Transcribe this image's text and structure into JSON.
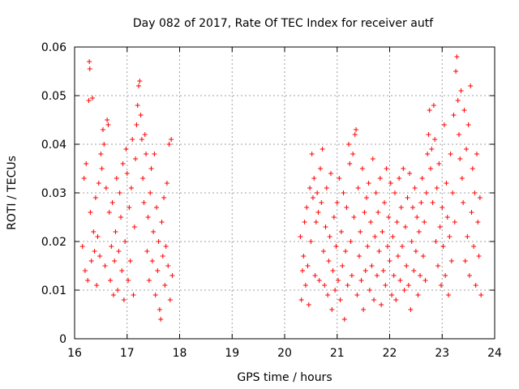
{
  "chart_data": {
    "type": "scatter",
    "title": "Day 082 of 2017, Rate Of TEC Index for receiver autf",
    "xlabel": "GPS time / hours",
    "ylabel": "ROTI / TECUs",
    "xlim": [
      16,
      24
    ],
    "ylim": [
      0,
      0.06
    ],
    "x_ticks": [
      16,
      17,
      18,
      19,
      20,
      21,
      22,
      23,
      24
    ],
    "y_ticks": [
      0,
      0.01,
      0.02,
      0.03,
      0.04,
      0.05,
      0.06
    ],
    "x_tick_labels": [
      "16",
      "17",
      "18",
      "19",
      "20",
      "21",
      "22",
      "23",
      "24"
    ],
    "y_tick_labels": [
      "0",
      "0.01",
      "0.02",
      "0.03",
      "0.04",
      "0.05",
      "0.06"
    ],
    "grid": true,
    "marker": "+",
    "color": "#ff0000",
    "series": [
      {
        "name": "ROTI",
        "points": [
          [
            16.15,
            0.019
          ],
          [
            16.18,
            0.033
          ],
          [
            16.2,
            0.014
          ],
          [
            16.22,
            0.036
          ],
          [
            16.25,
            0.012
          ],
          [
            16.27,
            0.049
          ],
          [
            16.28,
            0.057
          ],
          [
            16.29,
            0.0555
          ],
          [
            16.3,
            0.026
          ],
          [
            16.32,
            0.016
          ],
          [
            16.34,
            0.0495
          ],
          [
            16.36,
            0.022
          ],
          [
            16.38,
            0.018
          ],
          [
            16.4,
            0.029
          ],
          [
            16.42,
            0.011
          ],
          [
            16.44,
            0.021
          ],
          [
            16.46,
            0.032
          ],
          [
            16.48,
            0.017
          ],
          [
            16.5,
            0.038
          ],
          [
            16.52,
            0.035
          ],
          [
            16.54,
            0.043
          ],
          [
            16.56,
            0.04
          ],
          [
            16.58,
            0.015
          ],
          [
            16.6,
            0.031
          ],
          [
            16.62,
            0.045
          ],
          [
            16.64,
            0.044
          ],
          [
            16.66,
            0.026
          ],
          [
            16.68,
            0.012
          ],
          [
            16.7,
            0.019
          ],
          [
            16.72,
            0.028
          ],
          [
            16.74,
            0.009
          ],
          [
            16.76,
            0.016
          ],
          [
            16.78,
            0.022
          ],
          [
            16.8,
            0.033
          ],
          [
            16.82,
            0.01
          ],
          [
            16.84,
            0.018
          ],
          [
            16.86,
            0.03
          ],
          [
            16.88,
            0.025
          ],
          [
            16.9,
            0.014
          ],
          [
            16.92,
            0.036
          ],
          [
            16.94,
            0.008
          ],
          [
            16.96,
            0.02
          ],
          [
            16.98,
            0.039
          ],
          [
            17.0,
            0.034
          ],
          [
            17.02,
            0.012
          ],
          [
            17.04,
            0.027
          ],
          [
            17.06,
            0.016
          ],
          [
            17.08,
            0.031
          ],
          [
            17.1,
            0.041
          ],
          [
            17.12,
            0.009
          ],
          [
            17.14,
            0.023
          ],
          [
            17.16,
            0.037
          ],
          [
            17.18,
            0.044
          ],
          [
            17.2,
            0.048
          ],
          [
            17.22,
            0.052
          ],
          [
            17.24,
            0.053
          ],
          [
            17.26,
            0.046
          ],
          [
            17.28,
            0.041
          ],
          [
            17.3,
            0.033
          ],
          [
            17.32,
            0.028
          ],
          [
            17.34,
            0.042
          ],
          [
            17.36,
            0.038
          ],
          [
            17.38,
            0.018
          ],
          [
            17.4,
            0.025
          ],
          [
            17.42,
            0.012
          ],
          [
            17.44,
            0.03
          ],
          [
            17.46,
            0.035
          ],
          [
            17.48,
            0.016
          ],
          [
            17.5,
            0.022
          ],
          [
            17.52,
            0.038
          ],
          [
            17.54,
            0.009
          ],
          [
            17.56,
            0.027
          ],
          [
            17.58,
            0.014
          ],
          [
            17.6,
            0.02
          ],
          [
            17.62,
            0.006
          ],
          [
            17.64,
            0.004
          ],
          [
            17.66,
            0.024
          ],
          [
            17.68,
            0.017
          ],
          [
            17.7,
            0.029
          ],
          [
            17.72,
            0.011
          ],
          [
            17.74,
            0.019
          ],
          [
            17.76,
            0.032
          ],
          [
            17.78,
            0.015
          ],
          [
            17.8,
            0.04
          ],
          [
            17.82,
            0.008
          ],
          [
            17.84,
            0.041
          ],
          [
            17.86,
            0.013
          ],
          [
            20.3,
            0.021
          ],
          [
            20.32,
            0.008
          ],
          [
            20.34,
            0.014
          ],
          [
            20.36,
            0.017
          ],
          [
            20.38,
            0.024
          ],
          [
            20.4,
            0.011
          ],
          [
            20.42,
            0.027
          ],
          [
            20.44,
            0.015
          ],
          [
            20.46,
            0.007
          ],
          [
            20.48,
            0.031
          ],
          [
            20.5,
            0.02
          ],
          [
            20.52,
            0.038
          ],
          [
            20.54,
            0.029
          ],
          [
            20.56,
            0.033
          ],
          [
            20.58,
            0.013
          ],
          [
            20.6,
            0.024
          ],
          [
            20.62,
            0.03
          ],
          [
            20.64,
            0.026
          ],
          [
            20.66,
            0.012
          ],
          [
            20.68,
            0.035
          ],
          [
            20.7,
            0.028
          ],
          [
            20.72,
            0.039
          ],
          [
            20.74,
            0.018
          ],
          [
            20.76,
            0.011
          ],
          [
            20.78,
            0.023
          ],
          [
            20.8,
            0.031
          ],
          [
            20.82,
            0.009
          ],
          [
            20.84,
            0.016
          ],
          [
            20.86,
            0.021
          ],
          [
            20.88,
            0.034
          ],
          [
            20.9,
            0.006
          ],
          [
            20.92,
            0.014
          ],
          [
            20.94,
            0.025
          ],
          [
            20.96,
            0.01
          ],
          [
            20.98,
            0.019
          ],
          [
            21.0,
            0.028
          ],
          [
            21.02,
            0.012
          ],
          [
            21.04,
            0.033
          ],
          [
            21.06,
            0.008
          ],
          [
            21.08,
            0.022
          ],
          [
            21.1,
            0.015
          ],
          [
            21.12,
            0.03
          ],
          [
            21.14,
            0.004
          ],
          [
            21.16,
            0.018
          ],
          [
            21.18,
            0.027
          ],
          [
            21.2,
            0.011
          ],
          [
            21.22,
            0.04
          ],
          [
            21.24,
            0.036
          ],
          [
            21.26,
            0.02
          ],
          [
            21.28,
            0.013
          ],
          [
            21.3,
            0.038
          ],
          [
            21.32,
            0.025
          ],
          [
            21.34,
            0.042
          ],
          [
            21.36,
            0.043
          ],
          [
            21.38,
            0.009
          ],
          [
            21.4,
            0.031
          ],
          [
            21.42,
            0.017
          ],
          [
            21.44,
            0.022
          ],
          [
            21.46,
            0.012
          ],
          [
            21.48,
            0.035
          ],
          [
            21.5,
            0.006
          ],
          [
            21.52,
            0.026
          ],
          [
            21.54,
            0.014
          ],
          [
            21.56,
            0.029
          ],
          [
            21.58,
            0.019
          ],
          [
            21.6,
            0.032
          ],
          [
            21.62,
            0.01
          ],
          [
            21.64,
            0.024
          ],
          [
            21.66,
            0.015
          ],
          [
            21.68,
            0.037
          ],
          [
            21.7,
            0.008
          ],
          [
            21.72,
            0.021
          ],
          [
            21.74,
            0.03
          ],
          [
            21.76,
            0.013
          ],
          [
            21.78,
            0.026
          ],
          [
            21.8,
            0.018
          ],
          [
            21.82,
            0.033
          ],
          [
            21.84,
            0.007
          ],
          [
            21.86,
            0.022
          ],
          [
            21.88,
            0.014
          ],
          [
            21.9,
            0.028
          ],
          [
            21.92,
            0.011
          ],
          [
            21.94,
            0.035
          ],
          [
            21.96,
            0.019
          ],
          [
            21.98,
            0.025
          ],
          [
            22.0,
            0.016
          ],
          [
            22.02,
            0.032
          ],
          [
            22.04,
            0.009
          ],
          [
            22.06,
            0.021
          ],
          [
            22.08,
            0.013
          ],
          [
            22.1,
            0.03
          ],
          [
            22.12,
            0.008
          ],
          [
            22.14,
            0.024
          ],
          [
            22.16,
            0.017
          ],
          [
            22.18,
            0.033
          ],
          [
            22.2,
            0.012
          ],
          [
            22.22,
            0.027
          ],
          [
            22.24,
            0.019
          ],
          [
            22.26,
            0.035
          ],
          [
            22.28,
            0.01
          ],
          [
            22.3,
            0.023
          ],
          [
            22.32,
            0.015
          ],
          [
            22.34,
            0.029
          ],
          [
            22.36,
            0.011
          ],
          [
            22.38,
            0.034
          ],
          [
            22.4,
            0.006
          ],
          [
            22.42,
            0.02
          ],
          [
            22.44,
            0.027
          ],
          [
            22.46,
            0.014
          ],
          [
            22.48,
            0.031
          ],
          [
            22.5,
            0.018
          ],
          [
            22.52,
            0.025
          ],
          [
            22.54,
            0.009
          ],
          [
            22.56,
            0.022
          ],
          [
            22.58,
            0.013
          ],
          [
            22.6,
            0.028
          ],
          [
            22.62,
            0.033
          ],
          [
            22.64,
            0.017
          ],
          [
            22.66,
            0.024
          ],
          [
            22.68,
            0.012
          ],
          [
            22.7,
            0.03
          ],
          [
            22.72,
            0.038
          ],
          [
            22.74,
            0.042
          ],
          [
            22.76,
            0.047
          ],
          [
            22.78,
            0.035
          ],
          [
            22.8,
            0.039
          ],
          [
            22.82,
            0.028
          ],
          [
            22.84,
            0.048
          ],
          [
            22.86,
            0.041
          ],
          [
            22.88,
            0.02
          ],
          [
            22.9,
            0.031
          ],
          [
            22.92,
            0.015
          ],
          [
            22.94,
            0.036
          ],
          [
            22.96,
            0.023
          ],
          [
            22.98,
            0.011
          ],
          [
            23.0,
            0.027
          ],
          [
            23.02,
            0.019
          ],
          [
            23.04,
            0.044
          ],
          [
            23.06,
            0.013
          ],
          [
            23.08,
            0.032
          ],
          [
            23.1,
            0.025
          ],
          [
            23.12,
            0.009
          ],
          [
            23.14,
            0.021
          ],
          [
            23.16,
            0.038
          ],
          [
            23.18,
            0.016
          ],
          [
            23.2,
            0.03
          ],
          [
            23.22,
            0.046
          ],
          [
            23.24,
            0.024
          ],
          [
            23.26,
            0.055
          ],
          [
            23.28,
            0.058
          ],
          [
            23.3,
            0.049
          ],
          [
            23.32,
            0.042
          ],
          [
            23.34,
            0.037
          ],
          [
            23.36,
            0.051
          ],
          [
            23.38,
            0.033
          ],
          [
            23.4,
            0.028
          ],
          [
            23.42,
            0.047
          ],
          [
            23.44,
            0.016
          ],
          [
            23.46,
            0.039
          ],
          [
            23.48,
            0.021
          ],
          [
            23.5,
            0.044
          ],
          [
            23.52,
            0.013
          ],
          [
            23.54,
            0.052
          ],
          [
            23.56,
            0.026
          ],
          [
            23.58,
            0.035
          ],
          [
            23.6,
            0.019
          ],
          [
            23.62,
            0.03
          ],
          [
            23.64,
            0.011
          ],
          [
            23.66,
            0.038
          ],
          [
            23.68,
            0.024
          ],
          [
            23.7,
            0.017
          ],
          [
            23.72,
            0.029
          ],
          [
            23.74,
            0.009
          ]
        ]
      }
    ]
  }
}
